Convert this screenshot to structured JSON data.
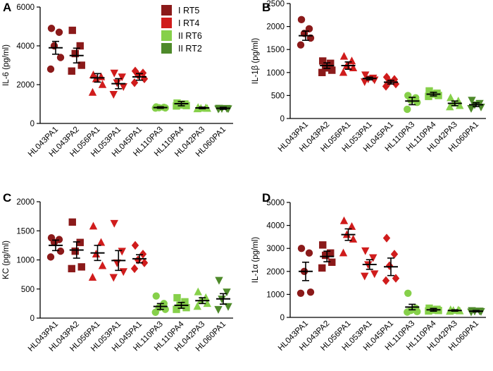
{
  "colors": {
    "RT5": "#8b1a1a",
    "RT4": "#d01c1c",
    "RT6": "#86d04a",
    "RT2": "#4e8a2a"
  },
  "legend": [
    {
      "label": "I RT5",
      "key": "RT5"
    },
    {
      "label": "I RT4",
      "key": "RT4"
    },
    {
      "label": "II RT6",
      "key": "RT6"
    },
    {
      "label": "II RT2",
      "key": "RT2"
    }
  ],
  "chart_data": [
    {
      "panel": "A",
      "type": "scatter",
      "ylabel": "IL-6 (pg/ml)",
      "ylim": [
        0,
        6000
      ],
      "yticks": [
        "0",
        "2000",
        "4000",
        "6000"
      ],
      "categories": [
        "HL043PA1",
        "HL043PA2",
        "HL056PA1",
        "HL053PA1",
        "HL045PA1",
        "HL110PA3",
        "HL110PA4",
        "HL042PA3",
        "HL060PA1"
      ],
      "groups": [
        "RT5",
        "RT5",
        "RT4",
        "RT4",
        "RT4",
        "RT6",
        "RT6",
        "RT6",
        "RT2"
      ],
      "markers": [
        "circle",
        "square",
        "triangle-up",
        "triangle-down",
        "diamond",
        "circle",
        "square",
        "triangle-up",
        "triangle-down"
      ],
      "means": [
        3900,
        3500,
        2350,
        2050,
        2400,
        820,
        1020,
        800,
        780
      ],
      "sem": [
        330,
        380,
        220,
        260,
        170,
        40,
        110,
        40,
        50
      ],
      "points": [
        [
          4900,
          4700,
          4000,
          3400,
          2800
        ],
        [
          4800,
          4000,
          3600,
          3000,
          2700
        ],
        [
          2500,
          2400,
          2300,
          2000,
          1600
        ],
        [
          2600,
          2400,
          2100,
          1900,
          1500
        ],
        [
          2700,
          2600,
          2500,
          2300,
          2100
        ],
        [
          850,
          830,
          810,
          800,
          790
        ],
        [
          1050,
          1000,
          950,
          920,
          900
        ],
        [
          820,
          800,
          780,
          770,
          750
        ],
        [
          790,
          780,
          770,
          760,
          750
        ]
      ]
    },
    {
      "panel": "B",
      "type": "scatter",
      "ylabel": "IL-1β (pg/ml)",
      "ylim": [
        0,
        2500
      ],
      "yticks": [
        "0",
        "500",
        "1000",
        "1500",
        "2000",
        "2500"
      ],
      "categories": [
        "HL043PA1",
        "HL043PA2",
        "HL056PA1",
        "HL053PA1",
        "HL045PA1",
        "HL110PA3",
        "HL110PA4",
        "HL042PA3",
        "HL060PA1"
      ],
      "groups": [
        "RT5",
        "RT5",
        "RT4",
        "RT4",
        "RT4",
        "RT6",
        "RT6",
        "RT6",
        "RT2"
      ],
      "markers": [
        "circle",
        "square",
        "triangle-up",
        "triangle-down",
        "diamond",
        "circle",
        "square",
        "triangle-up",
        "triangle-down"
      ],
      "means": [
        1800,
        1150,
        1150,
        870,
        790,
        380,
        530,
        330,
        300
      ],
      "sem": [
        100,
        60,
        80,
        30,
        40,
        80,
        40,
        50,
        40
      ],
      "points": [
        [
          2150,
          1950,
          1850,
          1750,
          1600
        ],
        [
          1250,
          1200,
          1100,
          1050,
          1000
        ],
        [
          1350,
          1250,
          1150,
          1100,
          1000
        ],
        [
          950,
          880,
          860,
          840,
          800
        ],
        [
          900,
          850,
          800,
          750,
          700
        ],
        [
          500,
          450,
          400,
          350,
          200
        ],
        [
          600,
          550,
          530,
          500,
          480
        ],
        [
          450,
          380,
          330,
          280,
          250
        ],
        [
          400,
          330,
          300,
          250,
          220
        ]
      ]
    },
    {
      "panel": "C",
      "type": "scatter",
      "ylabel": "KC (pg/ml)",
      "ylim": [
        0,
        2000
      ],
      "yticks": [
        "0",
        "500",
        "1000",
        "1500",
        "2000"
      ],
      "categories": [
        "HL043PA1",
        "HL043PA2",
        "HL056PA1",
        "HL053PA1",
        "HL045PA1",
        "HL110PA3",
        "HL110PA4",
        "HL042PA3",
        "HL060PA1"
      ],
      "groups": [
        "RT5",
        "RT5",
        "RT4",
        "RT4",
        "RT4",
        "RT6",
        "RT6",
        "RT6",
        "RT2"
      ],
      "markers": [
        "circle",
        "square",
        "triangle-up",
        "triangle-down",
        "diamond",
        "circle",
        "square",
        "triangle-up",
        "triangle-down"
      ],
      "means": [
        1250,
        1170,
        1120,
        990,
        1020,
        200,
        220,
        300,
        330
      ],
      "sem": [
        90,
        140,
        130,
        170,
        70,
        50,
        50,
        50,
        90
      ],
      "points": [
        [
          1380,
          1350,
          1300,
          1150,
          1050
        ],
        [
          1650,
          1300,
          1150,
          880,
          850
        ],
        [
          1580,
          1300,
          1100,
          900,
          700
        ],
        [
          1630,
          1150,
          950,
          800,
          700
        ],
        [
          1250,
          1100,
          1000,
          950,
          850
        ],
        [
          380,
          250,
          180,
          150,
          100
        ],
        [
          350,
          280,
          220,
          180,
          150
        ],
        [
          450,
          350,
          300,
          250,
          200
        ],
        [
          650,
          450,
          330,
          200,
          150
        ]
      ]
    },
    {
      "panel": "D",
      "type": "scatter",
      "ylabel": "IL-1α (pg/ml)",
      "ylim": [
        0,
        5000
      ],
      "yticks": [
        "0",
        "1000",
        "2000",
        "3000",
        "4000",
        "5000"
      ],
      "categories": [
        "HL043PA1",
        "HL043PA2",
        "HL056PA1",
        "HL053PA1",
        "HL045PA1",
        "HL110PA3",
        "HL110PA4",
        "HL042PA3",
        "HL060PA1"
      ],
      "groups": [
        "RT5",
        "RT5",
        "RT4",
        "RT4",
        "RT4",
        "RT6",
        "RT6",
        "RT6",
        "RT2"
      ],
      "markers": [
        "circle",
        "square",
        "triangle-up",
        "triangle-down",
        "diamond",
        "circle",
        "square",
        "triangle-up",
        "triangle-down"
      ],
      "means": [
        2000,
        2650,
        3600,
        2300,
        2200,
        450,
        330,
        300,
        270
      ],
      "sem": [
        400,
        230,
        250,
        210,
        380,
        120,
        60,
        30,
        30
      ],
      "points": [
        [
          3000,
          2800,
          2000,
          1100,
          1050
        ],
        [
          3150,
          2800,
          2700,
          2400,
          2150
        ],
        [
          4200,
          3950,
          3600,
          3400,
          2800
        ],
        [
          2900,
          2600,
          2300,
          1900,
          1800
        ],
        [
          3450,
          2750,
          2250,
          1700,
          1600
        ],
        [
          1050,
          400,
          300,
          250,
          230
        ],
        [
          400,
          350,
          320,
          300,
          280
        ],
        [
          330,
          320,
          300,
          280,
          260
        ],
        [
          300,
          280,
          270,
          260,
          240
        ]
      ]
    }
  ]
}
